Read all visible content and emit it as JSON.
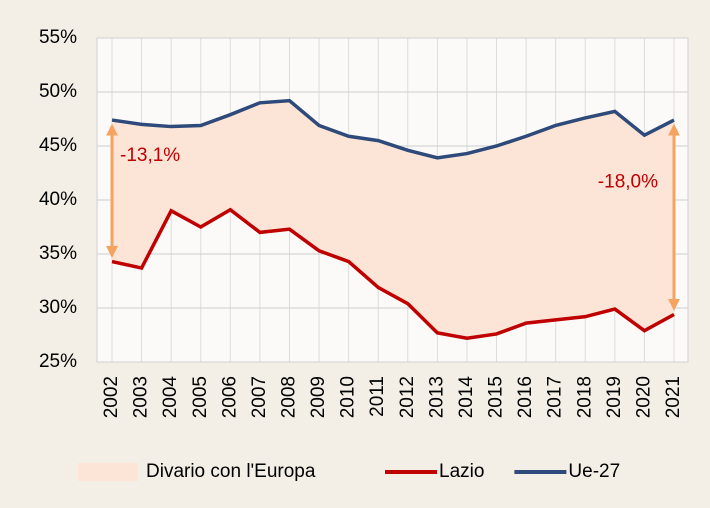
{
  "chart_data": {
    "type": "line",
    "categories": [
      "2002",
      "2003",
      "2004",
      "2005",
      "2006",
      "2007",
      "2008",
      "2009",
      "2010",
      "2011",
      "2012",
      "2013",
      "2014",
      "2015",
      "2016",
      "2017",
      "2018",
      "2019",
      "2020",
      "2021"
    ],
    "series": [
      {
        "name": "Lazio",
        "color": "#c00000",
        "values": [
          34.3,
          33.7,
          39.0,
          37.5,
          39.1,
          37.0,
          37.3,
          35.3,
          34.3,
          31.9,
          30.4,
          27.7,
          27.2,
          27.6,
          28.6,
          28.9,
          29.2,
          29.9,
          27.9,
          29.4
        ]
      },
      {
        "name": "Ue-27",
        "color": "#2e4a7a",
        "values": [
          47.4,
          47.0,
          46.8,
          46.9,
          47.9,
          49.0,
          49.2,
          46.9,
          45.9,
          45.5,
          44.6,
          43.9,
          44.3,
          45.0,
          45.9,
          46.9,
          47.6,
          48.2,
          46.0,
          47.4
        ]
      }
    ],
    "band": {
      "name": "Divario con l'Europa",
      "color": "#fce4d6"
    },
    "annotations": [
      {
        "text": "-13,1%",
        "x": "2002",
        "color": "#c00000",
        "arrow_color": "#f4a460"
      },
      {
        "text": "-18,0%",
        "x": "2021",
        "color": "#c00000",
        "arrow_color": "#f4a460"
      }
    ],
    "ylim": [
      25,
      55
    ],
    "yticks": [
      {
        "value": 25,
        "label": "25%"
      },
      {
        "value": 30,
        "label": "30%"
      },
      {
        "value": 35,
        "label": "35%"
      },
      {
        "value": 40,
        "label": "40%"
      },
      {
        "value": 45,
        "label": "45%"
      },
      {
        "value": 50,
        "label": "50%"
      },
      {
        "value": 55,
        "label": "55%"
      }
    ],
    "grid": true,
    "legend": "bottom"
  }
}
